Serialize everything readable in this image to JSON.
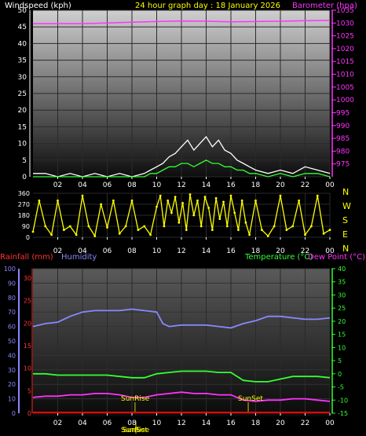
{
  "chart_data": [
    {
      "type": "line",
      "title": "24 hour graph day : 18 January 2026",
      "ylabel": "Windspeed (kph)",
      "y2label": "Barometer (hpa)",
      "ylim": [
        0,
        50
      ],
      "y2lim": [
        970,
        1035
      ],
      "x_ticks": [
        "02",
        "04",
        "06",
        "08",
        "10",
        "12",
        "14",
        "16",
        "18",
        "20",
        "22",
        "00"
      ],
      "y_ticks": [
        "0",
        "5",
        "10",
        "15",
        "20",
        "25",
        "30",
        "35",
        "40",
        "45",
        "50"
      ],
      "y2_ticks": [
        "975",
        "980",
        "985",
        "990",
        "995",
        "1000",
        "1005",
        "1010",
        "1015",
        "1020",
        "1025",
        "1030",
        "1035"
      ],
      "series": [
        {
          "role": "gust",
          "color": "#ffffff",
          "x": [
            0,
            1,
            2,
            3,
            4,
            5,
            6,
            7,
            8,
            9,
            9.5,
            10,
            10.5,
            11,
            11.5,
            12,
            12.5,
            13,
            13.5,
            14,
            14.5,
            15,
            15.5,
            16,
            16.5,
            17,
            17.5,
            18,
            19,
            20,
            21,
            22,
            23,
            24
          ],
          "values": [
            1,
            1,
            0,
            1,
            0,
            1,
            0,
            1,
            0,
            1,
            2,
            3,
            4,
            6,
            7,
            9,
            11,
            8,
            10,
            12,
            9,
            11,
            8,
            7,
            5,
            4,
            3,
            2,
            1,
            2,
            1,
            3,
            2,
            1
          ]
        },
        {
          "role": "average",
          "color": "#33ff33",
          "x": [
            0,
            1,
            2,
            3,
            4,
            5,
            6,
            7,
            8,
            9,
            9.5,
            10,
            10.5,
            11,
            11.5,
            12,
            12.5,
            13,
            13.5,
            14,
            14.5,
            15,
            15.5,
            16,
            16.5,
            17,
            17.5,
            18,
            19,
            20,
            21,
            22,
            23,
            24
          ],
          "values": [
            0,
            0,
            0,
            0,
            0,
            0,
            0,
            0,
            0,
            0,
            1,
            1,
            2,
            3,
            3,
            4,
            4,
            3,
            4,
            5,
            4,
            4,
            3,
            3,
            2,
            2,
            1,
            1,
            0,
            1,
            0,
            1,
            1,
            0
          ]
        },
        {
          "role": "barometer",
          "color": "#ff33ff",
          "axis": "right",
          "x": [
            0,
            2,
            4,
            6,
            8,
            10,
            12,
            14,
            16,
            18,
            20,
            22,
            24
          ],
          "values": [
            1029.8,
            1029.8,
            1029.8,
            1030.0,
            1030.3,
            1030.6,
            1030.8,
            1030.7,
            1030.5,
            1030.6,
            1030.7,
            1030.9,
            1031.0
          ]
        }
      ]
    },
    {
      "type": "scatter",
      "ylim": [
        0,
        360
      ],
      "y_ticks": [
        "0",
        "90",
        "180",
        "270",
        "360"
      ],
      "direction_labels": [
        "N",
        "W",
        "S",
        "E",
        "N"
      ],
      "x_ticks": [
        "02",
        "04",
        "06",
        "08",
        "10",
        "12",
        "14",
        "16",
        "18",
        "20",
        "22",
        "00"
      ],
      "series": [
        {
          "role": "wind-direction",
          "color": "#ffff00",
          "x": [
            0,
            0.5,
            1,
            1.5,
            2,
            2.5,
            3,
            3.5,
            4,
            4.5,
            5,
            5.5,
            6,
            6.5,
            7,
            7.5,
            8,
            8.5,
            9,
            9.5,
            10,
            10.3,
            10.6,
            10.9,
            11.2,
            11.5,
            11.8,
            12.1,
            12.4,
            12.7,
            13,
            13.3,
            13.6,
            13.9,
            14.2,
            14.5,
            14.8,
            15.1,
            15.4,
            15.7,
            16,
            16.3,
            16.6,
            16.9,
            17.2,
            17.5,
            18,
            18.5,
            19,
            19.5,
            20,
            20.5,
            21,
            21.5,
            22,
            22.5,
            23,
            23.5,
            24
          ],
          "values": [
            45,
            300,
            90,
            20,
            300,
            60,
            90,
            20,
            340,
            90,
            10,
            270,
            80,
            300,
            30,
            90,
            300,
            60,
            90,
            20,
            250,
            340,
            90,
            300,
            200,
            330,
            120,
            280,
            60,
            350,
            180,
            300,
            90,
            330,
            240,
            60,
            320,
            150,
            290,
            90,
            340,
            200,
            60,
            300,
            120,
            20,
            300,
            60,
            10,
            90,
            340,
            60,
            90,
            300,
            20,
            90,
            340,
            30,
            60
          ]
        }
      ]
    },
    {
      "type": "line",
      "left_label": "Rainfall (mm)",
      "left2_label": "Humidity",
      "right_label": "Temperature (°C)",
      "right2_label": "Dew Point (°C)",
      "humidity_ticks": [
        "0",
        "10",
        "20",
        "30",
        "40",
        "50",
        "60",
        "70",
        "80",
        "90",
        "100"
      ],
      "rain_ticks": [
        "0",
        "5",
        "10",
        "15",
        "20",
        "25",
        "30"
      ],
      "temp_ticks": [
        "-15",
        "-10",
        "-5",
        "0",
        "5",
        "10",
        "15",
        "20",
        "25",
        "30",
        "35",
        "40"
      ],
      "humidity_lim": [
        0,
        100
      ],
      "rain_lim": [
        0,
        30
      ],
      "temp_lim": [
        -15,
        40
      ],
      "x_ticks": [
        "02",
        "04",
        "06",
        "08",
        "10",
        "12",
        "14",
        "16",
        "18",
        "20",
        "22",
        "00"
      ],
      "sunrise_label": "SunRise",
      "sunset_label": "SunSet",
      "bottom_sunrise_label": "SunRise",
      "bottom_sunset_label": "SunSet",
      "sunrise_hour": 8.25,
      "sunset_hour": 17.4,
      "series": [
        {
          "role": "humidity",
          "color": "#8888ff",
          "x": [
            0,
            1,
            2,
            3,
            4,
            5,
            6,
            7,
            8,
            9,
            10,
            10.5,
            11,
            12,
            13,
            14,
            15,
            16,
            17,
            18,
            19,
            20,
            21,
            22,
            23,
            24
          ],
          "values": [
            60,
            62,
            63,
            67,
            70,
            71,
            71,
            71,
            72,
            71,
            70,
            62,
            60,
            61,
            61,
            61,
            60,
            59,
            62,
            64,
            67,
            67,
            66,
            65,
            65,
            66
          ]
        },
        {
          "role": "temperature",
          "color": "#33ff33",
          "x": [
            0,
            1,
            2,
            3,
            4,
            5,
            6,
            7,
            8,
            9,
            10,
            11,
            12,
            13,
            14,
            15,
            16,
            17,
            18,
            19,
            20,
            21,
            22,
            23,
            24
          ],
          "values": [
            0,
            0,
            -0.5,
            -0.5,
            -0.5,
            -0.5,
            -0.5,
            -1,
            -1.5,
            -1.5,
            0,
            0.5,
            1,
            1,
            1,
            0.5,
            0.5,
            -2.5,
            -3,
            -3,
            -2,
            -1,
            -1,
            -1,
            -1.5
          ]
        },
        {
          "role": "dew-point",
          "color": "#ff33ff",
          "x": [
            0,
            1,
            2,
            3,
            4,
            5,
            6,
            7,
            8,
            9,
            10,
            11,
            12,
            13,
            14,
            15,
            16,
            17,
            18,
            19,
            20,
            21,
            22,
            23,
            24
          ],
          "values": [
            -9,
            -8.5,
            -8.5,
            -8,
            -8,
            -7.5,
            -7.5,
            -8,
            -9,
            -9,
            -8,
            -7.5,
            -7,
            -7.5,
            -7.5,
            -8,
            -8,
            -10,
            -10.5,
            -10,
            -10,
            -9.5,
            -9.5,
            -10,
            -10.5
          ]
        },
        {
          "role": "rainfall",
          "color": "#ff0000",
          "x": [
            0,
            24
          ],
          "values": [
            0,
            0
          ]
        }
      ]
    }
  ],
  "colors": {
    "background": "#000000",
    "axis_text": "#ffffff",
    "title_text": "#ffff00",
    "barometer_text": "#ff33ff",
    "rain_text": "#ff3333",
    "humidity_text": "#8888ff",
    "temp_text": "#33ff33",
    "dew_text": "#ff33ff",
    "wind_dir": "#ffff00"
  }
}
